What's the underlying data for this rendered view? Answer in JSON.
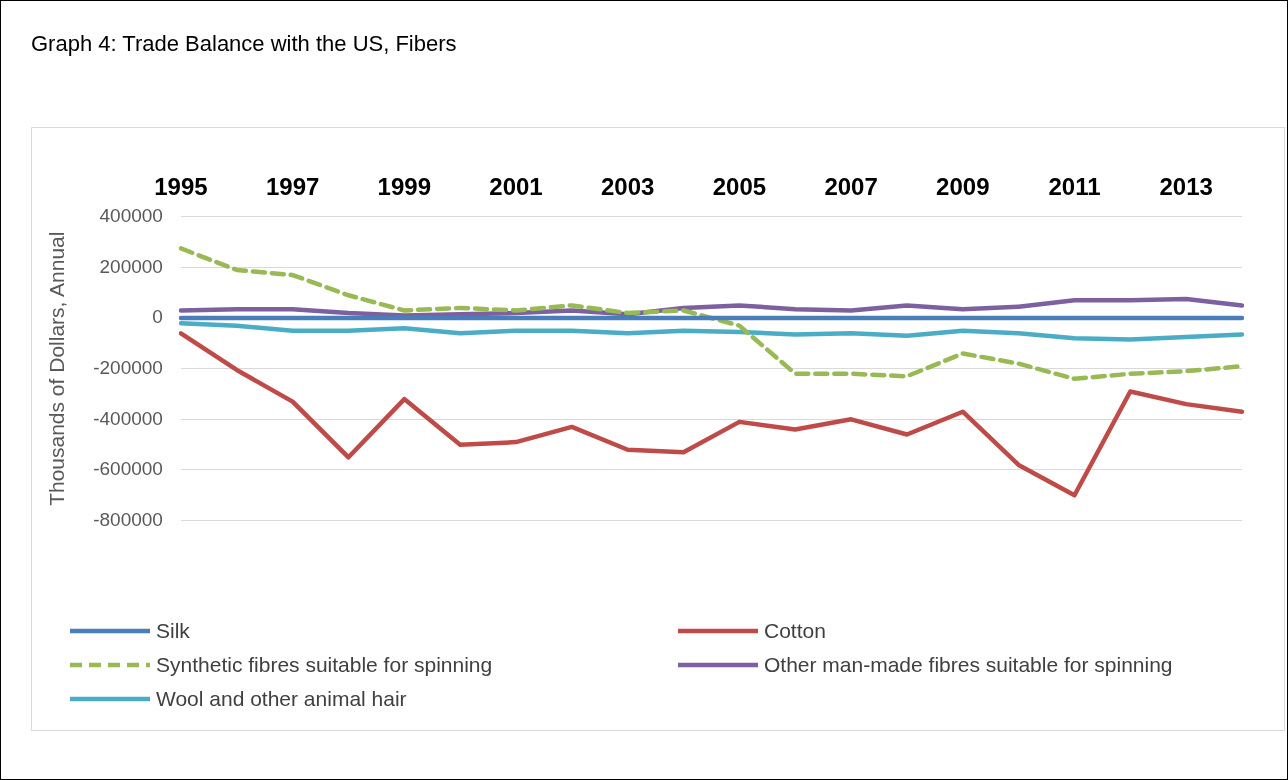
{
  "chart_data": {
    "type": "line",
    "title": "Graph 4: Trade Balance with the US, Fibers",
    "ylabel": "Thousands of Dollars, Annual",
    "categories": [
      "1995",
      null,
      "1997",
      null,
      "1999",
      null,
      "2001",
      null,
      "2003",
      null,
      "2005",
      null,
      "2007",
      null,
      "2009",
      null,
      "2011",
      null,
      "2013",
      null
    ],
    "ylim": [
      -800000,
      400000
    ],
    "yticks": [
      -800000,
      -600000,
      -400000,
      -200000,
      0,
      200000,
      400000
    ],
    "grid": "y",
    "legend": "bottom",
    "marker": "none",
    "series": [
      {
        "name": "Silk",
        "color": "#4a7ebb",
        "values": [
          0,
          0,
          0,
          0,
          0,
          0,
          0,
          0,
          0,
          0,
          0,
          0,
          0,
          0,
          0,
          0,
          0,
          0,
          0,
          0
        ]
      },
      {
        "name": "Cotton",
        "color": "#be4b48",
        "values": [
          -60000,
          -205000,
          -330000,
          -550000,
          -320000,
          -500000,
          -490000,
          -430000,
          -520000,
          -530000,
          -410000,
          -440000,
          -400000,
          -460000,
          -370000,
          -580000,
          -700000,
          -290000,
          -340000,
          -370000
        ]
      },
      {
        "name": "Synthetic fibres suitable for spinning",
        "color": "#98b954",
        "line_style": "dashed",
        "values": [
          275000,
          190000,
          170000,
          90000,
          30000,
          40000,
          30000,
          50000,
          20000,
          30000,
          -30000,
          -220000,
          -220000,
          -230000,
          -140000,
          -180000,
          -240000,
          -220000,
          -210000,
          -190000
        ]
      },
      {
        "name": "Other man-made fibres suitable for spinning",
        "color": "#7d60a0",
        "values": [
          30000,
          35000,
          35000,
          20000,
          10000,
          15000,
          20000,
          30000,
          15000,
          40000,
          50000,
          35000,
          30000,
          50000,
          35000,
          45000,
          70000,
          70000,
          75000,
          50000
        ]
      },
      {
        "name": "Wool and other animal hair",
        "color": "#4bacc6",
        "values": [
          -20000,
          -30000,
          -50000,
          -50000,
          -40000,
          -60000,
          -50000,
          -50000,
          -60000,
          -50000,
          -55000,
          -65000,
          -60000,
          -70000,
          -50000,
          -60000,
          -80000,
          -85000,
          -75000,
          -65000
        ]
      }
    ]
  }
}
